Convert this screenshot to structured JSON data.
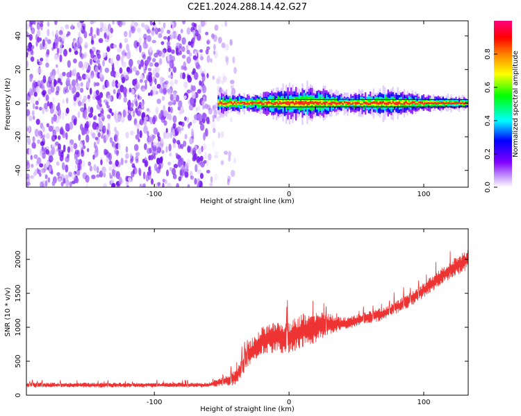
{
  "title": "C2E1.2024.288.14.42.G27",
  "colors": {
    "snr_line": "#ee3333",
    "noise_purple": "#7a1ff0",
    "carrier_red": "#ff2020"
  },
  "chart_data": [
    {
      "type": "heatmap",
      "title": "C2E1.2024.288.14.42.G27",
      "xlabel": "Height of straight line (km)",
      "ylabel": "Frequency (Hz)",
      "xlim": [
        -195,
        133
      ],
      "ylim": [
        -50,
        49
      ],
      "x_ticks": [
        -100,
        0,
        100
      ],
      "y_ticks": [
        -40,
        -20,
        0,
        20,
        40
      ],
      "colorbar": {
        "label": "Normalized spectral amplitude",
        "range": [
          0,
          1
        ],
        "ticks": [
          "0.0",
          "0.2",
          "0.4",
          "0.6",
          "0.8"
        ],
        "colormap": [
          "#ffffff",
          "#8000ff",
          "#0000ff",
          "#00ffff",
          "#00ff00",
          "#ffff00",
          "#ff8000",
          "#ff0000",
          "#ff0080"
        ]
      },
      "features": {
        "broadband_noise_x_range": [
          -195,
          -40
        ],
        "carrier_onset_x": -53,
        "carrier_frequency": 0,
        "carrier_spread_hz": [
          {
            "x": -53,
            "hz": 4
          },
          {
            "x": -30,
            "hz": 3
          },
          {
            "x": 0,
            "hz": 6
          },
          {
            "x": 20,
            "hz": 6
          },
          {
            "x": 40,
            "hz": 3
          },
          {
            "x": 70,
            "hz": 5
          },
          {
            "x": 100,
            "hz": 3
          },
          {
            "x": 133,
            "hz": 2
          }
        ]
      }
    },
    {
      "type": "line",
      "xlabel": "Height of straight line (km)",
      "ylabel": "SNR (10 * v/v)",
      "xlim": [
        -195,
        133
      ],
      "ylim": [
        0,
        2450
      ],
      "x_ticks": [
        -100,
        0,
        100
      ],
      "y_ticks": [
        0,
        500,
        1000,
        1500,
        2000
      ],
      "series": [
        {
          "x": [
            -195,
            -150,
            -100,
            -60,
            -50,
            -40,
            -30,
            -20,
            -10,
            0,
            10,
            20,
            30,
            40,
            50,
            60,
            70,
            80,
            90,
            100,
            110,
            120,
            133
          ],
          "center": [
            150,
            150,
            150,
            150,
            200,
            250,
            600,
            800,
            850,
            850,
            950,
            1000,
            1050,
            1050,
            1100,
            1150,
            1200,
            1300,
            1400,
            1550,
            1700,
            1850,
            2000
          ],
          "spread": [
            60,
            60,
            60,
            60,
            120,
            200,
            300,
            350,
            380,
            400,
            420,
            380,
            250,
            150,
            150,
            160,
            170,
            170,
            180,
            180,
            200,
            220,
            250
          ]
        }
      ]
    }
  ]
}
